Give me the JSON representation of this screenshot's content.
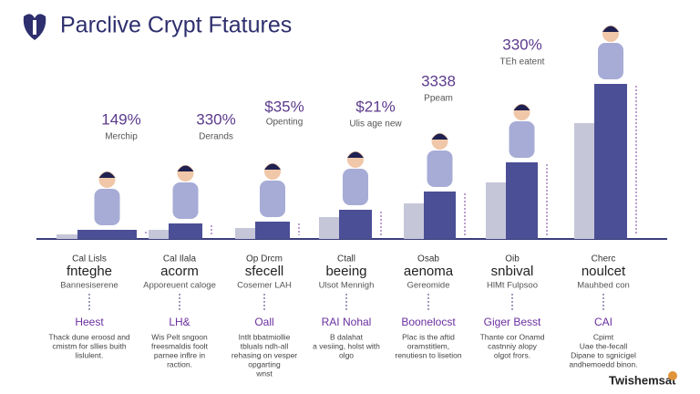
{
  "header": {
    "title": "Parclive Crypt Ftatures"
  },
  "top_labels": [
    {
      "value": "149%",
      "caption": "Merchip"
    },
    {
      "value": "330%",
      "caption": "Derands"
    },
    {
      "value": "$35%",
      "caption": "Openting"
    },
    {
      "value": "$21%",
      "caption": "Ulis age new"
    },
    {
      "value": "3338",
      "caption": "Ppeam"
    },
    {
      "value": "330%",
      "caption": "TEh eatent"
    }
  ],
  "columns": [
    {
      "label": "Cal Lisls",
      "name": "fnteghe",
      "sub": "Bannesiserene",
      "link": "Heest",
      "desc": [
        "Thack dune eroosd and",
        "cmistm for sllies buith",
        "lislulent."
      ]
    },
    {
      "label": "Cal Ilala",
      "name": "acorm",
      "sub": "Apporeuent caloge",
      "link": "LH&",
      "desc": [
        "Wis Pelt sngoon",
        "freesmaldis foolt",
        "parnee inflre in",
        "raction."
      ]
    },
    {
      "label": "Op Drcm",
      "name": "sfecell",
      "sub": "Cosemer LAH",
      "link": "Oall",
      "desc": [
        "Intlt bbatmiollie",
        "tbluals ndh-all",
        "rehasing on vesper",
        "opgarting",
        "wnst"
      ]
    },
    {
      "label": "Ctall",
      "name": "beeing",
      "sub": "Ulsot Mennigh",
      "link": "RAI Nohal",
      "desc": [
        "B dalahat",
        "a vesiing, holst with",
        "olgo"
      ]
    },
    {
      "label": "Osab",
      "name": "aenoma",
      "sub": "Gereomide",
      "link": "Boonelocst",
      "desc": [
        "Plac is the aftid",
        "oramstitlem,",
        "renutiesn to lisetion"
      ]
    },
    {
      "label": "Oib",
      "name": "snbival",
      "sub": "HlMt Fulpsoo",
      "link": "Giger Besst",
      "desc": [
        "Thante cor Onamd",
        "castnniy alopy",
        "olgot frors."
      ]
    },
    {
      "label": "Cherc",
      "name": "noulcet",
      "sub": "Mauhbed con",
      "link": "CAI",
      "desc": [
        "Cpimt",
        "Uae the-fecall",
        "Dipane to sgnicigel",
        "andhemoedd binon."
      ]
    }
  ],
  "footer": {
    "brand": "Twishemsat"
  }
}
